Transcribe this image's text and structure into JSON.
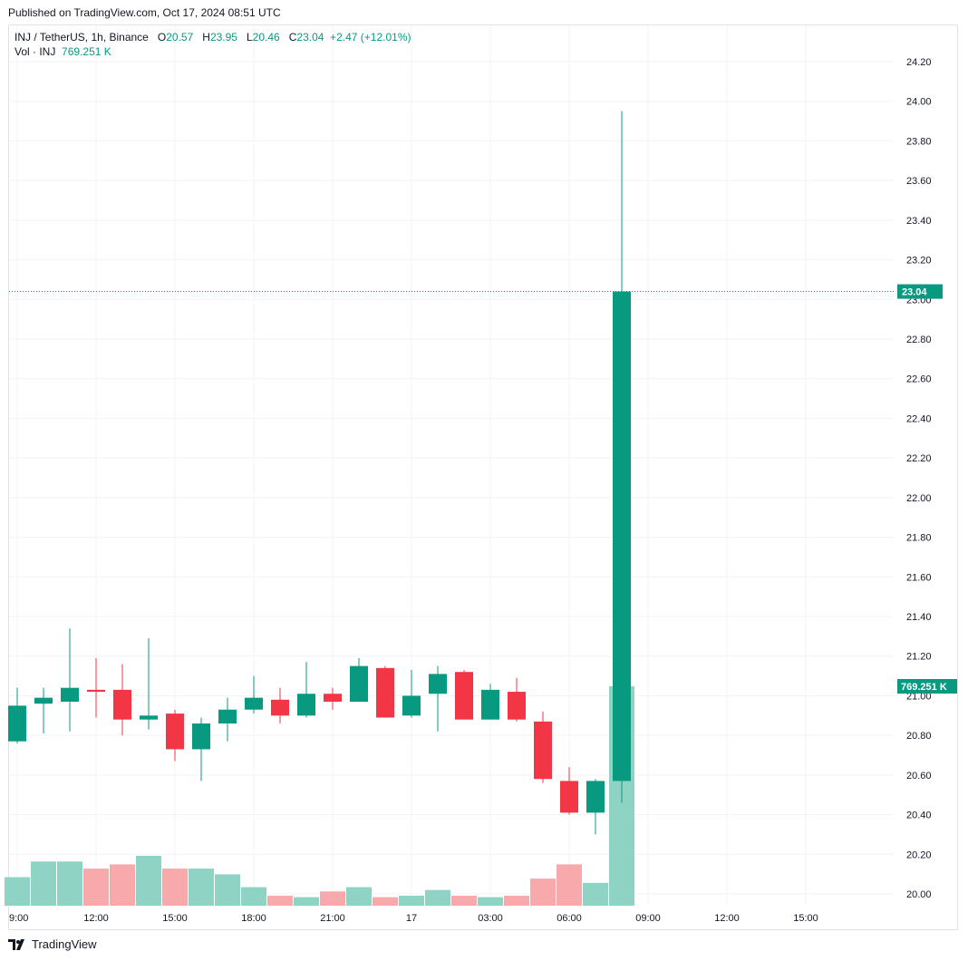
{
  "published": "Published on TradingView.com, Oct 17, 2024 08:51 UTC",
  "legend": {
    "symbol": "INJ / TetherUS, 1h, Binance",
    "o_label": "O",
    "o_value": "20.57",
    "h_label": "H",
    "h_value": "23.95",
    "l_label": "L",
    "l_value": "20.46",
    "c_label": "C",
    "c_value": "23.04",
    "change": "+2.47 (+12.01%)",
    "vol_label": "Vol · INJ",
    "vol_value": "769.251 K"
  },
  "brand": "TradingView",
  "colors": {
    "up": "#089981",
    "down": "#f23645",
    "up_vol": "#8fd3c5",
    "down_vol": "#f7a9ac",
    "grid": "#f0f3fa"
  },
  "chart_data": {
    "type": "candlestick",
    "ylim": [
      19.95,
      24.3
    ],
    "y_ticks": [
      "24.20",
      "24.00",
      "23.80",
      "23.60",
      "23.40",
      "23.20",
      "23.00",
      "22.80",
      "22.60",
      "22.40",
      "22.20",
      "22.00",
      "21.80",
      "21.60",
      "21.40",
      "21.20",
      "21.00",
      "20.80",
      "20.60",
      "20.40",
      "20.20",
      "20.00"
    ],
    "x_ticks": [
      "9:00",
      "12:00",
      "15:00",
      "18:00",
      "21:00",
      "17",
      "03:00",
      "06:00",
      "09:00",
      "12:00",
      "15:00"
    ],
    "last_price": "23.04",
    "last_volume": "769.251 K",
    "volume_max": 769.251,
    "candles": [
      {
        "o": 20.77,
        "h": 21.04,
        "l": 20.76,
        "c": 20.95,
        "v": 100
      },
      {
        "o": 20.96,
        "h": 21.04,
        "l": 20.81,
        "c": 20.99,
        "v": 155
      },
      {
        "o": 20.97,
        "h": 21.34,
        "l": 20.82,
        "c": 21.04,
        "v": 155
      },
      {
        "o": 21.03,
        "h": 21.19,
        "l": 20.89,
        "c": 21.02,
        "v": 130
      },
      {
        "o": 21.03,
        "h": 21.16,
        "l": 20.8,
        "c": 20.88,
        "v": 145
      },
      {
        "o": 20.88,
        "h": 21.29,
        "l": 20.83,
        "c": 20.9,
        "v": 175
      },
      {
        "o": 20.91,
        "h": 20.93,
        "l": 20.67,
        "c": 20.73,
        "v": 130
      },
      {
        "o": 20.73,
        "h": 20.89,
        "l": 20.57,
        "c": 20.86,
        "v": 130
      },
      {
        "o": 20.86,
        "h": 20.99,
        "l": 20.77,
        "c": 20.93,
        "v": 110
      },
      {
        "o": 20.93,
        "h": 21.1,
        "l": 20.91,
        "c": 20.99,
        "v": 65
      },
      {
        "o": 20.98,
        "h": 21.04,
        "l": 20.86,
        "c": 20.9,
        "v": 35
      },
      {
        "o": 20.9,
        "h": 21.17,
        "l": 20.89,
        "c": 21.01,
        "v": 30
      },
      {
        "o": 21.01,
        "h": 21.04,
        "l": 20.93,
        "c": 20.97,
        "v": 50
      },
      {
        "o": 20.97,
        "h": 21.19,
        "l": 20.97,
        "c": 21.15,
        "v": 65
      },
      {
        "o": 21.14,
        "h": 21.15,
        "l": 20.89,
        "c": 20.89,
        "v": 30
      },
      {
        "o": 20.9,
        "h": 21.13,
        "l": 20.89,
        "c": 21.0,
        "v": 35
      },
      {
        "o": 21.01,
        "h": 21.15,
        "l": 20.82,
        "c": 21.11,
        "v": 55
      },
      {
        "o": 21.12,
        "h": 21.13,
        "l": 20.88,
        "c": 20.88,
        "v": 35
      },
      {
        "o": 20.88,
        "h": 21.06,
        "l": 20.88,
        "c": 21.03,
        "v": 30
      },
      {
        "o": 21.02,
        "h": 21.09,
        "l": 20.87,
        "c": 20.88,
        "v": 35
      },
      {
        "o": 20.87,
        "h": 20.92,
        "l": 20.56,
        "c": 20.58,
        "v": 95
      },
      {
        "o": 20.57,
        "h": 20.64,
        "l": 20.4,
        "c": 20.41,
        "v": 145
      },
      {
        "o": 20.41,
        "h": 20.58,
        "l": 20.3,
        "c": 20.57,
        "v": 80
      },
      {
        "o": 20.57,
        "h": 23.95,
        "l": 20.46,
        "c": 23.04,
        "v": 769.251
      }
    ]
  }
}
